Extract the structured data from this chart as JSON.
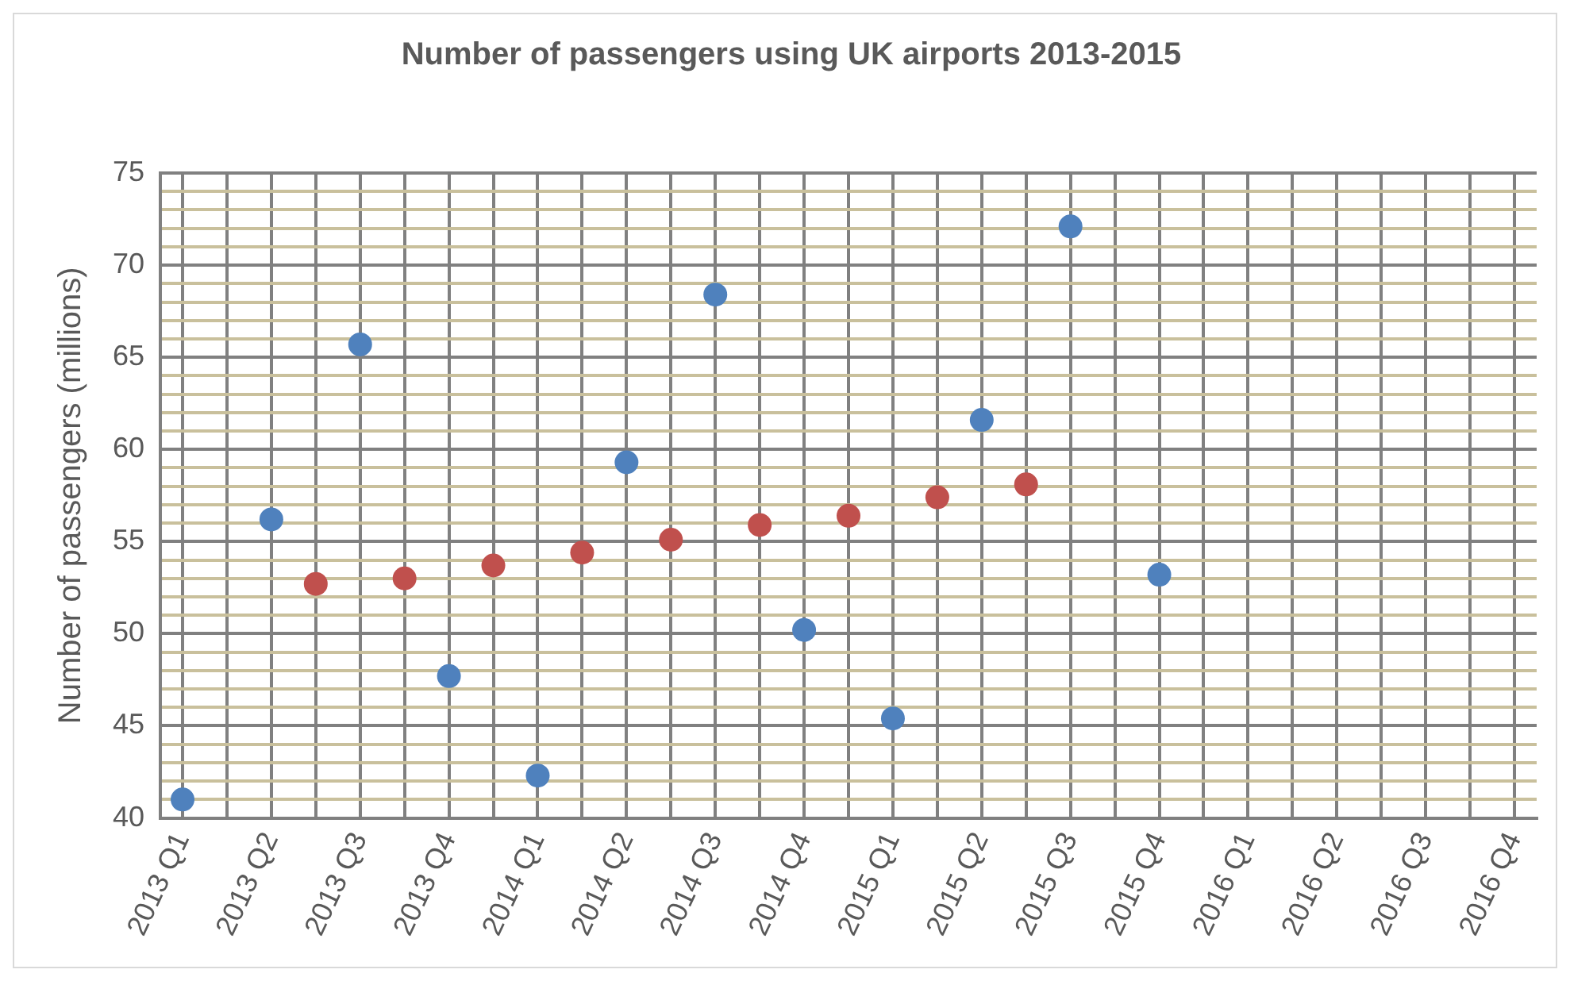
{
  "chart_data": {
    "type": "scatter",
    "title": "Number of passengers using UK airports 2013-2015",
    "ylabel": "Number of passengers (millions)",
    "categories": [
      "2013 Q1",
      null,
      "2013 Q2",
      null,
      "2013 Q3",
      null,
      "2013 Q4",
      null,
      "2014 Q1",
      null,
      "2014 Q2",
      null,
      "2014 Q3",
      null,
      "2014 Q4",
      null,
      "2015 Q1",
      null,
      "2015 Q2",
      null,
      "2015 Q3",
      null,
      "2015 Q4",
      null,
      "2016 Q1",
      null,
      "2016 Q2",
      null,
      "2016 Q3",
      null,
      "2016 Q4"
    ],
    "series": [
      {
        "color": "#4f81bd",
        "values": [
          41.0,
          null,
          56.2,
          null,
          65.7,
          null,
          47.7,
          null,
          42.3,
          null,
          59.3,
          null,
          68.4,
          null,
          50.2,
          null,
          45.4,
          null,
          61.6,
          null,
          72.1,
          null,
          53.2,
          null,
          null,
          null,
          null,
          null,
          null,
          null,
          null
        ]
      },
      {
        "color": "#c0504d",
        "values": [
          null,
          null,
          null,
          52.7,
          null,
          53.0,
          null,
          53.7,
          null,
          54.4,
          null,
          55.1,
          null,
          55.9,
          null,
          56.4,
          null,
          57.4,
          null,
          58.1,
          null,
          null,
          null,
          null,
          null,
          null,
          null,
          null,
          null,
          null,
          null
        ]
      }
    ],
    "ylim": [
      40,
      75
    ],
    "yticks": [
      40,
      {
        "value": 41,
        "label": null
      },
      {
        "value": 42,
        "label": null
      },
      {
        "value": 43,
        "label": null
      },
      {
        "value": 44,
        "label": null
      },
      45,
      {
        "value": 46,
        "label": null
      },
      {
        "value": 47,
        "label": null
      },
      {
        "value": 48,
        "label": null
      },
      {
        "value": 49,
        "label": null
      },
      50,
      {
        "value": 51,
        "label": null
      },
      {
        "value": 52,
        "label": null
      },
      {
        "value": 53,
        "label": null
      },
      {
        "value": 54,
        "label": null
      },
      55,
      {
        "value": 56,
        "label": null
      },
      {
        "value": 57,
        "label": null
      },
      {
        "value": 58,
        "label": null
      },
      {
        "value": 59,
        "label": null
      },
      60,
      {
        "value": 61,
        "label": null
      },
      {
        "value": 62,
        "label": null
      },
      {
        "value": 63,
        "label": null
      },
      {
        "value": 64,
        "label": null
      },
      65,
      {
        "value": 66,
        "label": null
      },
      {
        "value": 67,
        "label": null
      },
      {
        "value": 68,
        "label": null
      },
      {
        "value": 69,
        "label": null
      },
      70,
      {
        "value": 71,
        "label": null
      },
      {
        "value": 72,
        "label": null
      },
      {
        "value": 73,
        "label": null
      },
      {
        "value": 74,
        "label": null
      },
      75
    ],
    "grid": true,
    "legend": false,
    "marker": "circle"
  }
}
